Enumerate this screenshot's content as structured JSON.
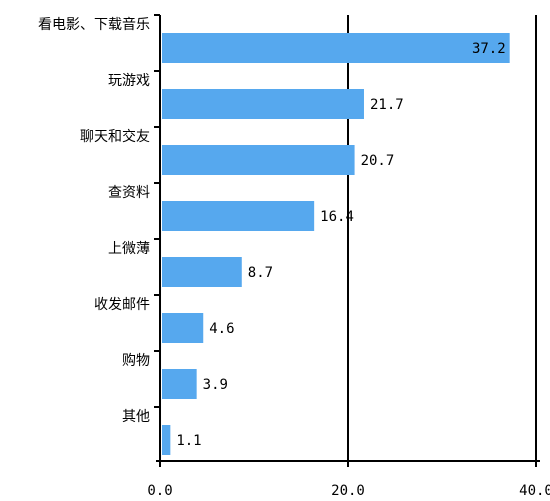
{
  "chart_data": {
    "type": "bar",
    "orientation": "horizontal",
    "categories": [
      "看电影、下载音乐",
      "玩游戏",
      "聊天和交友",
      "查资料",
      "上微薄",
      "收发邮件",
      "购物",
      "其他"
    ],
    "values": [
      37.2,
      21.7,
      20.7,
      16.4,
      8.7,
      4.6,
      3.9,
      1.1
    ],
    "color": "#56a8ee",
    "xlim": [
      0,
      40
    ],
    "xticks": [
      {
        "value": 0,
        "label": "0.0"
      },
      {
        "value": 20,
        "label": "20.0"
      },
      {
        "value": 40,
        "label": "40.0"
      }
    ],
    "grid": true
  }
}
